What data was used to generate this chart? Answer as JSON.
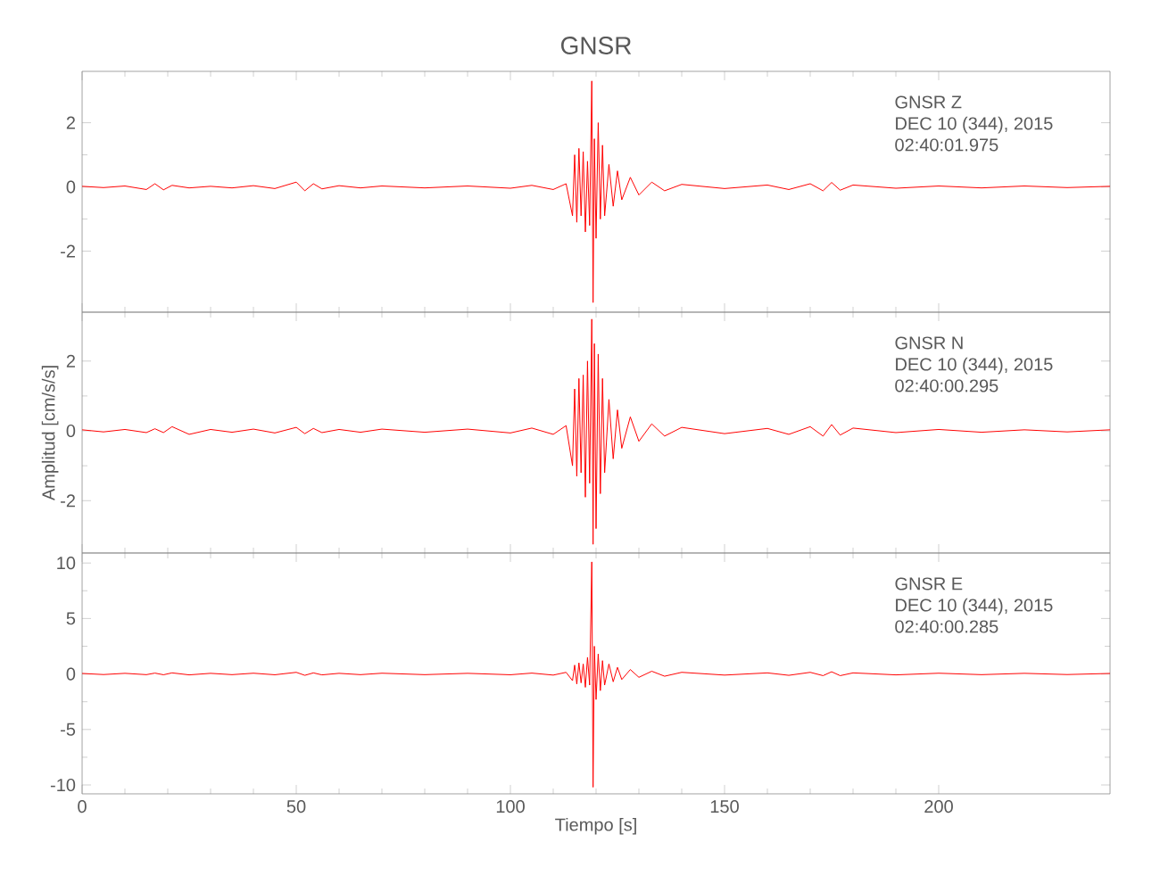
{
  "chart_data": [
    {
      "type": "line",
      "title": "GNSR",
      "color": "#ff0000",
      "xlim": [
        0,
        240
      ],
      "xticks": [
        0,
        50,
        100,
        150,
        200
      ],
      "ylim": [
        -3.9,
        3.6
      ],
      "yticks": [
        -2,
        0,
        2
      ],
      "tick_labels": "y",
      "annotations": [
        "GNSR   Z",
        "DEC 10 (344), 2015",
        "02:40:01.975"
      ],
      "x": [
        0,
        5,
        10,
        15,
        17,
        19,
        21,
        25,
        30,
        35,
        40,
        45,
        50,
        52,
        54,
        56,
        60,
        65,
        70,
        80,
        90,
        100,
        105,
        110,
        113,
        114.5,
        115,
        115.5,
        116,
        116.5,
        117,
        117.5,
        118,
        118.5,
        119,
        119.3,
        119.6,
        120,
        120.5,
        121,
        121.5,
        122,
        123,
        124,
        125,
        126,
        128,
        130,
        133,
        136,
        140,
        150,
        160,
        165,
        170,
        173,
        175,
        177,
        180,
        190,
        200,
        210,
        220,
        230,
        240
      ],
      "values": [
        0.02,
        -0.02,
        0.03,
        -0.08,
        0.1,
        -0.09,
        0.05,
        -0.03,
        0.02,
        -0.03,
        0.04,
        -0.05,
        0.15,
        -0.12,
        0.1,
        -0.06,
        0.04,
        -0.03,
        0.03,
        -0.03,
        0.03,
        -0.04,
        0.05,
        -0.08,
        0.1,
        -0.9,
        1.0,
        -1.1,
        1.2,
        -0.9,
        1.1,
        -1.4,
        0.8,
        -1.2,
        3.3,
        -3.6,
        1.5,
        -1.6,
        2.0,
        -1.0,
        1.3,
        -0.9,
        0.7,
        -0.6,
        0.5,
        -0.4,
        0.3,
        -0.25,
        0.15,
        -0.12,
        0.08,
        -0.05,
        0.06,
        -0.08,
        0.1,
        -0.12,
        0.14,
        -0.1,
        0.06,
        -0.04,
        0.03,
        -0.03,
        0.03,
        -0.02,
        0.02
      ]
    },
    {
      "type": "line",
      "ylabel": "Amplitud  [cm/s/s]",
      "color": "#ff0000",
      "xlim": [
        0,
        240
      ],
      "xticks": [
        0,
        50,
        100,
        150,
        200
      ],
      "ylim": [
        -3.5,
        3.4
      ],
      "yticks": [
        -2,
        0,
        2
      ],
      "tick_labels": "y",
      "annotations": [
        "GNSR   N",
        "DEC 10 (344), 2015",
        "02:40:00.295"
      ],
      "x": [
        0,
        5,
        10,
        15,
        17,
        19,
        21,
        25,
        30,
        35,
        40,
        45,
        50,
        52,
        54,
        56,
        60,
        65,
        70,
        80,
        90,
        100,
        105,
        110,
        113,
        114.5,
        115,
        115.5,
        116,
        116.5,
        117,
        117.5,
        118,
        118.5,
        119,
        119.3,
        119.6,
        120,
        120.5,
        121,
        121.5,
        122,
        123,
        124,
        125,
        126,
        128,
        130,
        133,
        136,
        140,
        150,
        160,
        165,
        170,
        173,
        175,
        177,
        180,
        190,
        200,
        210,
        220,
        230,
        240
      ],
      "values": [
        0.03,
        -0.03,
        0.04,
        -0.05,
        0.06,
        -0.05,
        0.12,
        -0.1,
        0.04,
        -0.04,
        0.05,
        -0.06,
        0.1,
        -0.08,
        0.07,
        -0.05,
        0.04,
        -0.04,
        0.05,
        -0.04,
        0.05,
        -0.06,
        0.08,
        -0.1,
        0.15,
        -1.0,
        1.2,
        -1.3,
        1.5,
        -1.2,
        1.6,
        -1.9,
        2.0,
        -1.5,
        3.2,
        -3.25,
        2.5,
        -2.8,
        2.2,
        -1.8,
        1.5,
        -1.2,
        0.9,
        -0.8,
        0.6,
        -0.5,
        0.4,
        -0.3,
        0.2,
        -0.15,
        0.1,
        -0.08,
        0.07,
        -0.1,
        0.12,
        -0.15,
        0.18,
        -0.12,
        0.08,
        -0.05,
        0.04,
        -0.04,
        0.03,
        -0.03,
        0.03
      ]
    },
    {
      "type": "line",
      "xlabel": "Tiempo  [s]",
      "color": "#ff0000",
      "xlim": [
        0,
        240
      ],
      "xticks": [
        0,
        50,
        100,
        150,
        200
      ],
      "ylim": [
        -10.8,
        10.9
      ],
      "yticks": [
        -10,
        -5,
        0,
        5,
        10
      ],
      "annotations": [
        "GNSR   E",
        "DEC 10 (344), 2015",
        "02:40:00.285"
      ],
      "x": [
        0,
        5,
        10,
        15,
        17,
        19,
        21,
        25,
        30,
        35,
        40,
        45,
        50,
        52,
        54,
        56,
        60,
        65,
        70,
        80,
        90,
        100,
        105,
        110,
        113,
        114.5,
        115,
        115.5,
        116,
        116.5,
        117,
        117.5,
        118,
        118.5,
        119,
        119.3,
        119.6,
        120,
        120.5,
        121,
        121.5,
        122,
        123,
        124,
        125,
        126,
        128,
        130,
        133,
        136,
        140,
        150,
        160,
        165,
        170,
        173,
        175,
        177,
        180,
        190,
        200,
        210,
        220,
        230,
        240
      ],
      "values": [
        0.05,
        -0.05,
        0.06,
        -0.06,
        0.08,
        -0.07,
        0.1,
        -0.08,
        0.06,
        -0.06,
        0.07,
        -0.07,
        0.15,
        -0.12,
        0.1,
        -0.08,
        0.06,
        -0.06,
        0.07,
        -0.06,
        0.06,
        -0.07,
        0.08,
        -0.1,
        0.15,
        -0.6,
        0.8,
        -0.9,
        1.0,
        -0.8,
        0.9,
        -1.2,
        1.5,
        -1.0,
        10.1,
        -10.2,
        2.5,
        -2.3,
        1.8,
        -1.5,
        1.2,
        -1.0,
        0.9,
        -0.7,
        0.6,
        -0.5,
        0.4,
        -0.3,
        0.25,
        -0.2,
        0.15,
        -0.1,
        0.1,
        -0.12,
        0.15,
        -0.15,
        0.2,
        -0.15,
        0.1,
        -0.08,
        0.07,
        -0.06,
        0.06,
        -0.05,
        0.05
      ]
    }
  ]
}
